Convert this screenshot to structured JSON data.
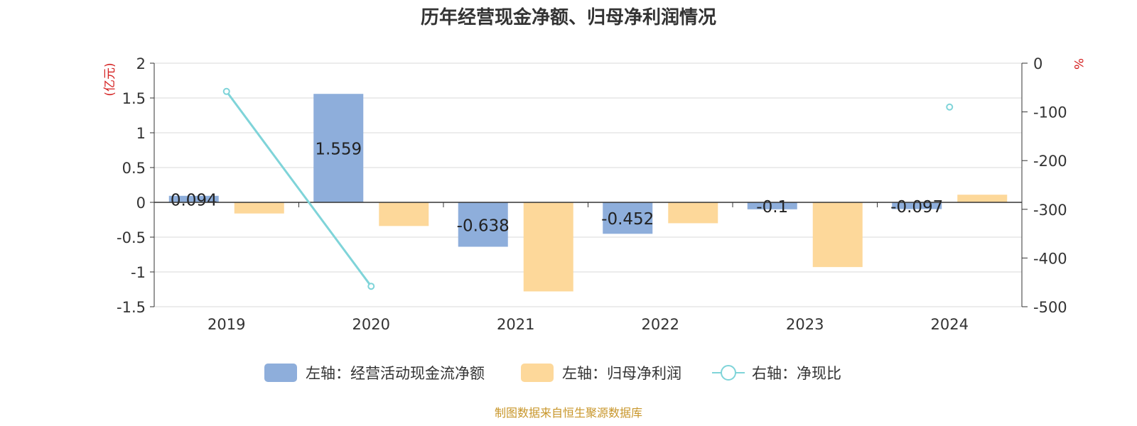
{
  "chart_data": {
    "type": "bar",
    "title": "历年经营现金净额、归母净利润情况",
    "source": "制图数据来自恒生聚源数据库",
    "categories": [
      "2019",
      "2020",
      "2021",
      "2022",
      "2023",
      "2024"
    ],
    "left_axis": {
      "unit_label": "(亿元)",
      "range": [
        -1.5,
        2
      ],
      "ticks": [
        "2",
        "1.5",
        "1",
        "0.5",
        "0",
        "-0.5",
        "-1",
        "-1.5"
      ]
    },
    "right_axis": {
      "unit_label": "%",
      "range": [
        -500,
        0
      ],
      "ticks": [
        "0",
        "-100",
        "-200",
        "-300",
        "-400",
        "-500"
      ]
    },
    "series": [
      {
        "name": "左轴：经营活动现金流净额",
        "type": "bar",
        "axis": "left",
        "color": "#8eaedb",
        "values": [
          0.094,
          1.559,
          -0.638,
          -0.452,
          -0.1,
          -0.097
        ],
        "labels": [
          "0.094",
          "1.559",
          "-0.638",
          "-0.452",
          "-0.1",
          "-0.097"
        ]
      },
      {
        "name": "左轴：归母净利润",
        "type": "bar",
        "axis": "left",
        "color": "#fdd89a",
        "values": [
          -0.16,
          -0.34,
          -1.28,
          -0.3,
          -0.93,
          0.11
        ]
      },
      {
        "name": "右轴：净现比",
        "type": "line",
        "axis": "right",
        "color": "#7fd4d9",
        "values": [
          -58,
          -458,
          null,
          null,
          null,
          -90
        ]
      }
    ],
    "grid": true,
    "legend_position": "bottom"
  }
}
